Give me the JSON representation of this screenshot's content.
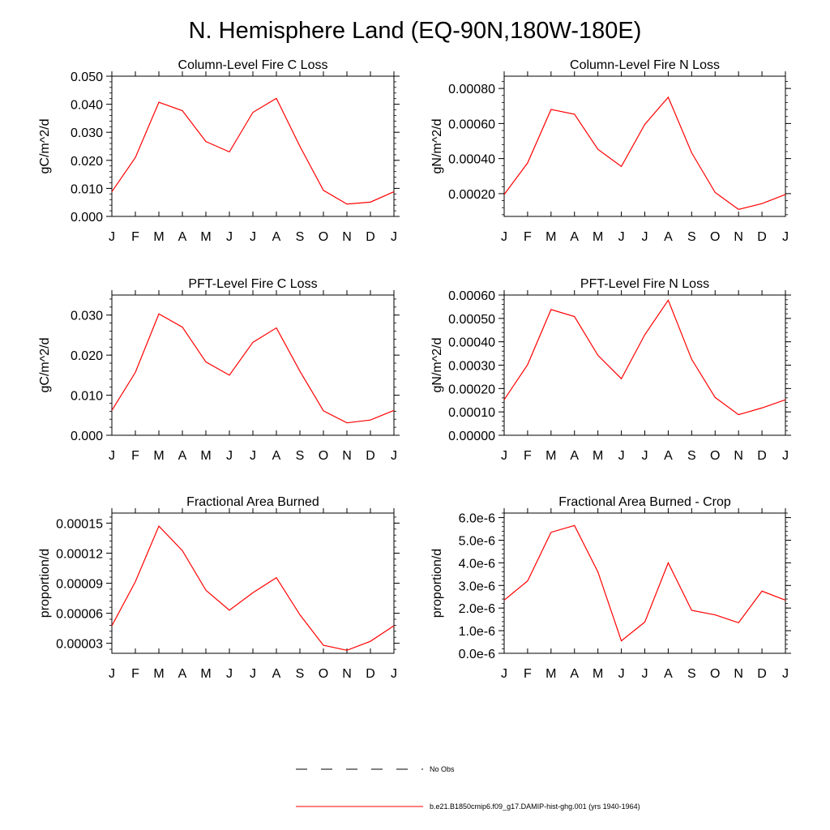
{
  "figure": {
    "title": "N. Hemisphere Land (EQ-90N,180W-180E)",
    "line_color": "#ff0000",
    "legend": [
      {
        "label": "No Obs",
        "style": "dashed",
        "color": "#000000"
      },
      {
        "label": "b.e21.B1850cmip6.f09_g17.DAMIP-hist-ghg.001 (yrs 1940-1964)",
        "style": "solid",
        "color": "#ff0000"
      }
    ]
  },
  "chart_data": [
    {
      "type": "line",
      "title": "Column-Level Fire C Loss",
      "ylabel": "gC/m^2/d",
      "categories": [
        "J",
        "F",
        "M",
        "A",
        "M",
        "J",
        "J",
        "A",
        "S",
        "O",
        "N",
        "D",
        "J"
      ],
      "ylim": [
        0,
        0.05
      ],
      "yticks": [
        0,
        0.01,
        0.02,
        0.03,
        0.04,
        0.05
      ],
      "ytick_labels": [
        "0.000",
        "0.010",
        "0.020",
        "0.030",
        "0.040",
        "0.050"
      ],
      "series": [
        {
          "values": [
            0.0088,
            0.021,
            0.0407,
            0.0377,
            0.0267,
            0.023,
            0.0371,
            0.0421,
            0.025,
            0.0093,
            0.0044,
            0.0051,
            0.0088
          ]
        }
      ]
    },
    {
      "type": "line",
      "title": "Column-Level Fire N Loss",
      "ylabel": "gN/m^2/d",
      "categories": [
        "J",
        "F",
        "M",
        "A",
        "M",
        "J",
        "J",
        "A",
        "S",
        "O",
        "N",
        "D",
        "J"
      ],
      "ylim": [
        7e-05,
        0.00087
      ],
      "yticks": [
        0.0002,
        0.0004,
        0.0006,
        0.0008
      ],
      "ytick_labels": [
        "0.00020",
        "0.00040",
        "0.00060",
        "0.00080"
      ],
      "series": [
        {
          "values": [
            0.000195,
            0.000375,
            0.00068,
            0.000653,
            0.000453,
            0.000355,
            0.000595,
            0.00075,
            0.000433,
            0.000207,
            0.00011,
            0.000143,
            0.000195
          ]
        }
      ]
    },
    {
      "type": "line",
      "title": "PFT-Level Fire C Loss",
      "ylabel": "gC/m^2/d",
      "categories": [
        "J",
        "F",
        "M",
        "A",
        "M",
        "J",
        "J",
        "A",
        "S",
        "O",
        "N",
        "D",
        "J"
      ],
      "ylim": [
        0,
        0.035
      ],
      "yticks": [
        0,
        0.01,
        0.02,
        0.03
      ],
      "ytick_labels": [
        "0.000",
        "0.010",
        "0.020",
        "0.030"
      ],
      "series": [
        {
          "values": [
            0.0062,
            0.0157,
            0.0303,
            0.027,
            0.0183,
            0.015,
            0.0232,
            0.0268,
            0.016,
            0.0061,
            0.0031,
            0.0038,
            0.0062
          ]
        }
      ]
    },
    {
      "type": "line",
      "title": "PFT-Level Fire N Loss",
      "ylabel": "gN/m^2/d",
      "categories": [
        "J",
        "F",
        "M",
        "A",
        "M",
        "J",
        "J",
        "A",
        "S",
        "O",
        "N",
        "D",
        "J"
      ],
      "ylim": [
        0,
        0.0006
      ],
      "yticks": [
        0,
        0.0001,
        0.0002,
        0.0003,
        0.0004,
        0.0005,
        0.0006
      ],
      "ytick_labels": [
        "0.00000",
        "0.00010",
        "0.00020",
        "0.00030",
        "0.00040",
        "0.00050",
        "0.00060"
      ],
      "series": [
        {
          "values": [
            0.000152,
            0.000302,
            0.000538,
            0.000508,
            0.000342,
            0.000242,
            0.00043,
            0.000578,
            0.000325,
            0.000162,
            8.8e-05,
            0.000117,
            0.000152
          ]
        }
      ]
    },
    {
      "type": "line",
      "title": "Fractional Area Burned",
      "ylabel": "proportion/d",
      "categories": [
        "J",
        "F",
        "M",
        "A",
        "M",
        "J",
        "J",
        "A",
        "S",
        "O",
        "N",
        "D",
        "J"
      ],
      "ylim": [
        2e-05,
        0.00016
      ],
      "yticks": [
        3e-05,
        6e-05,
        9e-05,
        0.00012,
        0.00015
      ],
      "ytick_labels": [
        "0.00003",
        "0.00006",
        "0.00009",
        "0.00012",
        "0.00015"
      ],
      "series": [
        {
          "values": [
            4.75e-05,
            9.15e-05,
            0.000147,
            0.0001225,
            8.3e-05,
            6.3e-05,
            8.05e-05,
            9.55e-05,
            5.85e-05,
            2.8e-05,
            2.3e-05,
            3.2e-05,
            4.75e-05
          ]
        }
      ]
    },
    {
      "type": "line",
      "title": "Fractional Area Burned - Crop",
      "ylabel": "proportion/d",
      "categories": [
        "J",
        "F",
        "M",
        "A",
        "M",
        "J",
        "J",
        "A",
        "S",
        "O",
        "N",
        "D",
        "J"
      ],
      "ylim": [
        0,
        6.2e-06
      ],
      "yticks": [
        0,
        1e-06,
        2e-06,
        3e-06,
        4e-06,
        5e-06,
        6e-06
      ],
      "ytick_labels": [
        "0.0e-6",
        "1.0e-6",
        "2.0e-6",
        "3.0e-6",
        "4.0e-6",
        "5.0e-6",
        "6.0e-6"
      ],
      "series": [
        {
          "values": [
            2.35e-06,
            3.2e-06,
            5.35e-06,
            5.65e-06,
            3.6e-06,
            5.5e-07,
            1.38e-06,
            4e-06,
            1.9e-06,
            1.7e-06,
            1.35e-06,
            2.75e-06,
            2.35e-06
          ]
        }
      ]
    }
  ]
}
